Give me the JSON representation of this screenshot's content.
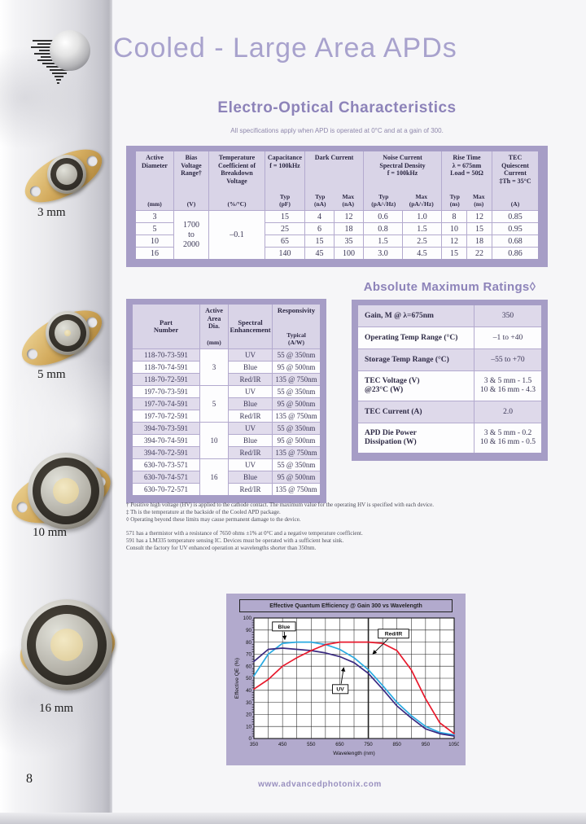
{
  "page": {
    "title": "Cooled - Large Area APDs",
    "page_number": "8",
    "website": "www.advancedphotonix.com"
  },
  "colors": {
    "accent_purple": "#8d83b9",
    "title_purple": "#a8a2cd",
    "table_frame": "#a69dc6",
    "header_fill": "#d9d4e7",
    "row_shade": "#e1dcec",
    "chart_panel": "#b2aacd",
    "blue_series": "#29aae1",
    "uv_series": "#3a2a80",
    "redir_series": "#e8192c"
  },
  "sidebar": {
    "devices": [
      {
        "label": "3 mm"
      },
      {
        "label": "5 mm"
      },
      {
        "label": "10 mm"
      },
      {
        "label": "16 mm"
      }
    ]
  },
  "eo": {
    "heading": "Electro-Optical Characteristics",
    "note": "All specifications apply when APD is operated at 0°C and at a gain of 300.",
    "headers": {
      "h_diam": {
        "main": "Active\nDiameter",
        "unit": "(mm)"
      },
      "h_bias": {
        "main": "Bias\nVoltage\nRange†",
        "unit": "(V)"
      },
      "h_temp": {
        "main": "Temperature\nCoefficient of\nBreakdown\nVoltage",
        "unit": "(%/°C)"
      },
      "h_cap": {
        "main": "Capacitance\nf = 100kHz",
        "unit": "Typ\n(pF)"
      },
      "h_dark": {
        "main": "Dark Current",
        "sub1": "Typ\n(nA)",
        "sub2": "Max\n(nA)"
      },
      "h_noise": {
        "main": "Noise Current\nSpectral Density\nf = 100kHz",
        "sub1": "Typ\n(pA/√Hz)",
        "sub2": "Max\n(pA/√Hz)"
      },
      "h_rise": {
        "main": "Rise Time\nλ = 675nm\nLoad = 50Ω",
        "sub1": "Typ\n(ns)",
        "sub2": "Max\n(ns)"
      },
      "h_tec": {
        "main": "TEC\nQuiescent\nCurrent\n‡Th = 35°C",
        "unit": "(A)"
      }
    },
    "bias_range": "1700\nto\n2000",
    "temp_coeff_value": "–0.1",
    "rows": [
      {
        "d": "3",
        "cap": "15",
        "dc_typ": "4",
        "dc_max": "12",
        "n_typ": "0.6",
        "n_max": "1.0",
        "rt_typ": "8",
        "rt_max": "12",
        "tec": "0.85"
      },
      {
        "d": "5",
        "cap": "25",
        "dc_typ": "6",
        "dc_max": "18",
        "n_typ": "0.8",
        "n_max": "1.5",
        "rt_typ": "10",
        "rt_max": "15",
        "tec": "0.95"
      },
      {
        "d": "10",
        "cap": "65",
        "dc_typ": "15",
        "dc_max": "35",
        "n_typ": "1.5",
        "n_max": "2.5",
        "rt_typ": "12",
        "rt_max": "18",
        "tec": "0.68"
      },
      {
        "d": "16",
        "cap": "140",
        "dc_typ": "45",
        "dc_max": "100",
        "n_typ": "3.0",
        "n_max": "4.5",
        "rt_typ": "15",
        "rt_max": "22",
        "tec": "0.86"
      }
    ]
  },
  "parts": {
    "headers": {
      "h_part": {
        "main": "Part\nNumber"
      },
      "h_dia": {
        "main": "Active\nArea\nDia.",
        "unit": "(mm)"
      },
      "h_enh": {
        "main": "Spectral\nEnhancement"
      },
      "h_resp": {
        "main": "Responsivity",
        "unit": "Typical\n(A/W)"
      }
    },
    "groups": [
      {
        "dia": "3",
        "rows": [
          {
            "pn": "118-70-73-591",
            "enh": "UV",
            "resp": "55 @ 350nm"
          },
          {
            "pn": "118-70-74-591",
            "enh": "Blue",
            "resp": "95 @ 500nm"
          },
          {
            "pn": "118-70-72-591",
            "enh": "Red/IR",
            "resp": "135 @ 750nm"
          }
        ]
      },
      {
        "dia": "5",
        "rows": [
          {
            "pn": "197-70-73-591",
            "enh": "UV",
            "resp": "55 @ 350nm"
          },
          {
            "pn": "197-70-74-591",
            "enh": "Blue",
            "resp": "95 @ 500nm"
          },
          {
            "pn": "197-70-72-591",
            "enh": "Red/IR",
            "resp": "135 @ 750nm"
          }
        ]
      },
      {
        "dia": "10",
        "rows": [
          {
            "pn": "394-70-73-591",
            "enh": "UV",
            "resp": "55 @ 350nm"
          },
          {
            "pn": "394-70-74-591",
            "enh": "Blue",
            "resp": "95 @ 500nm"
          },
          {
            "pn": "394-70-72-591",
            "enh": "Red/IR",
            "resp": "135 @ 750nm"
          }
        ]
      },
      {
        "dia": "16",
        "rows": [
          {
            "pn": "630-70-73-571",
            "enh": "UV",
            "resp": "55 @ 350nm"
          },
          {
            "pn": "630-70-74-571",
            "enh": "Blue",
            "resp": "95 @ 500nm"
          },
          {
            "pn": "630-70-72-571",
            "enh": "Red/IR",
            "resp": "135 @ 750nm"
          }
        ]
      }
    ]
  },
  "abs_max": {
    "heading": "Absolute Maximum Ratings◊",
    "rows": [
      {
        "param": "Gain, M @ λ=675nm",
        "value": "350"
      },
      {
        "param": "Operating Temp Range (°C)",
        "value": "–1 to +40"
      },
      {
        "param": "Storage Temp Range (°C)",
        "value": "–55 to +70"
      },
      {
        "param": "TEC Voltage (V)\n@23°C (W)",
        "value": "3 & 5 mm - 1.5\n10 & 16 mm - 4.3"
      },
      {
        "param": "TEC Current (A)",
        "value": "2.0"
      },
      {
        "param": "APD Die Power\nDissipation (W)",
        "value": "3 & 5 mm - 0.2\n10 & 16 mm - 0.5"
      }
    ]
  },
  "footnotes": [
    "† Positive high voltage (HV) is applied to the cathode contact. The maximum value for the operating HV is specified with each device.",
    "‡ Th is the temperature at the backside of the Cooled APD package.",
    "◊ Operating beyond these limits may cause permanent damage to the device.",
    "",
    "571 has a thermistor with a resistance of 7650 ohms ±1% at 0°C and a negative temperature coefficient.",
    "591 has a LM335 temperature sensing IC. Devices must be operated with a sufficient heat sink.",
    "Consult the factory for UV enhanced operation at wavelengths shorter than 350nm."
  ],
  "chart_data": {
    "type": "line",
    "title": "Effective Quantum Efficiency @ Gain 300 vs Wavelength",
    "xlabel": "Wavelength (nm)",
    "ylabel": "Effective QE (%)",
    "xlim": [
      350,
      1050
    ],
    "ylim": [
      0,
      100
    ],
    "x_ticks": [
      350,
      450,
      550,
      650,
      750,
      850,
      950,
      1050
    ],
    "x_grid_step": 50,
    "y_grid_step": 10,
    "emphasized_x": 750,
    "grid": true,
    "legend_position": "inline-callouts",
    "x": [
      350,
      400,
      450,
      500,
      550,
      600,
      650,
      700,
      750,
      800,
      850,
      900,
      950,
      1000,
      1050
    ],
    "series": [
      {
        "name": "Blue",
        "color": "#29aae1",
        "values": [
          52,
          70,
          79,
          80,
          80,
          78,
          74,
          67,
          57,
          44,
          30,
          19,
          10,
          5,
          3
        ]
      },
      {
        "name": "UV",
        "color": "#3a2a80",
        "values": [
          64,
          74,
          75,
          74,
          73,
          71,
          68,
          63,
          54,
          41,
          27,
          17,
          8,
          4,
          2
        ]
      },
      {
        "name": "Red/IR",
        "color": "#e8192c",
        "values": [
          41,
          49,
          60,
          67,
          73,
          78,
          80,
          80,
          80,
          79,
          73,
          57,
          33,
          13,
          4
        ]
      }
    ],
    "annotations": [
      {
        "label": "Blue",
        "box_x": 455,
        "box_y": 93,
        "tip_x": 458,
        "tip_y": 82
      },
      {
        "label": "Red/IR",
        "box_x": 838,
        "box_y": 87,
        "tip_x": 765,
        "tip_y": 70
      },
      {
        "label": "UV",
        "box_x": 652,
        "box_y": 41,
        "tip_x": 664,
        "tip_y": 59
      }
    ]
  }
}
